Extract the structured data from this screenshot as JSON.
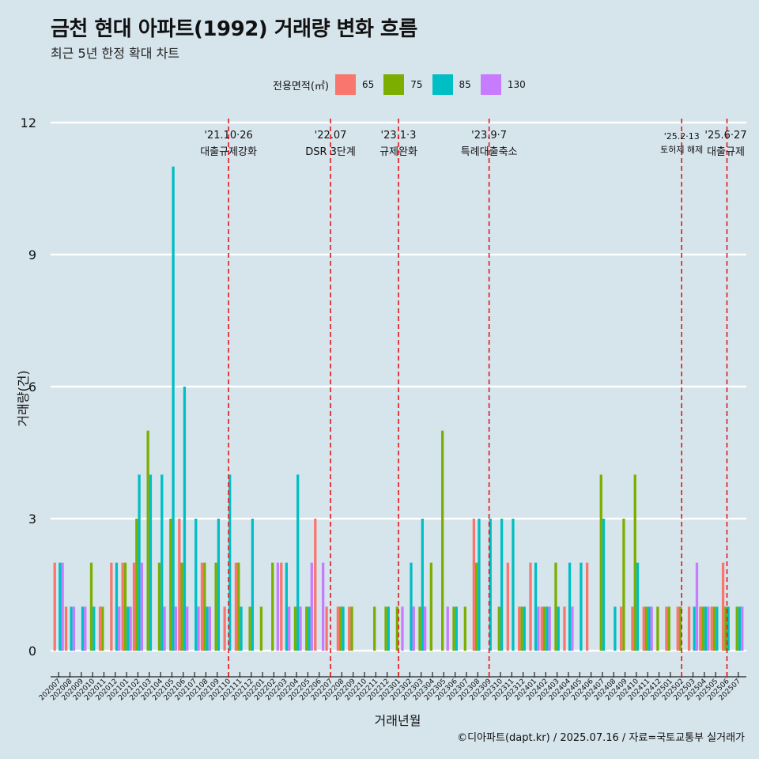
{
  "title": "금천 현대 아파트(1992) 거래량 변화 흐름",
  "subtitle": "최근 5년 한정 확대 차트",
  "caption": "©디아파트(dapt.kr) / 2025.07.16 / 자료=국토교통부 실거래가",
  "legend": {
    "title": "전용면적(㎡)",
    "items": [
      {
        "label": "65",
        "color": "#f8766d"
      },
      {
        "label": "75",
        "color": "#7cae00"
      },
      {
        "label": "85",
        "color": "#00bfc4"
      },
      {
        "label": "130",
        "color": "#c77cff"
      }
    ]
  },
  "chart_data": {
    "type": "bar",
    "title": "금천 현대 아파트(1992) 거래량 변화 흐름",
    "xlabel": "거래년월",
    "ylabel": "거래량(건)",
    "ylim": [
      0,
      12
    ],
    "yticks": [
      0,
      3,
      6,
      9,
      12
    ],
    "categories": [
      "202007",
      "202008",
      "202009",
      "202010",
      "202011",
      "202012",
      "202101",
      "202102",
      "202103",
      "202104",
      "202105",
      "202106",
      "202107",
      "202108",
      "202109",
      "202110",
      "202111",
      "202112",
      "202201",
      "202202",
      "202203",
      "202204",
      "202205",
      "202206",
      "202207",
      "202208",
      "202209",
      "202210",
      "202211",
      "202212",
      "202301",
      "202302",
      "202303",
      "202304",
      "202305",
      "202306",
      "202307",
      "202308",
      "202309",
      "202310",
      "202311",
      "202312",
      "202401",
      "202402",
      "202403",
      "202404",
      "202405",
      "202406",
      "202407",
      "202408",
      "202409",
      "202410",
      "202411",
      "202412",
      "202501",
      "202502",
      "202503",
      "202504",
      "202505",
      "202506",
      "202507"
    ],
    "series": [
      {
        "name": "65",
        "values": [
          2,
          1,
          0,
          0,
          1,
          2,
          2,
          2,
          0,
          0,
          0,
          3,
          0,
          2,
          0,
          1,
          2,
          0,
          0,
          0,
          2,
          0,
          0,
          3,
          1,
          1,
          1,
          0,
          0,
          0,
          0,
          0,
          0,
          0,
          0,
          0,
          0,
          3,
          0,
          0,
          2,
          1,
          2,
          1,
          0,
          1,
          0,
          2,
          0,
          0,
          1,
          1,
          1,
          0,
          1,
          1,
          1,
          1,
          1,
          2,
          0
        ]
      },
      {
        "name": "75",
        "values": [
          0,
          0,
          0,
          2,
          1,
          0,
          2,
          3,
          5,
          2,
          3,
          2,
          0,
          2,
          2,
          0,
          2,
          1,
          1,
          2,
          0,
          1,
          1,
          0,
          0,
          1,
          1,
          0,
          1,
          1,
          1,
          0,
          1,
          2,
          5,
          1,
          1,
          2,
          0,
          1,
          0,
          1,
          0,
          1,
          2,
          0,
          0,
          0,
          4,
          0,
          3,
          4,
          1,
          1,
          1,
          1,
          0,
          1,
          1,
          1,
          1
        ]
      },
      {
        "name": "85",
        "values": [
          2,
          1,
          1,
          1,
          0,
          2,
          1,
          4,
          4,
          4,
          11,
          6,
          3,
          1,
          3,
          4,
          1,
          3,
          0,
          0,
          2,
          4,
          1,
          0,
          0,
          1,
          0,
          0,
          0,
          1,
          0,
          2,
          3,
          0,
          0,
          1,
          0,
          3,
          3,
          3,
          3,
          1,
          2,
          1,
          1,
          2,
          2,
          0,
          3,
          1,
          0,
          2,
          1,
          0,
          0,
          0,
          1,
          1,
          1,
          1,
          1
        ]
      },
      {
        "name": "130",
        "values": [
          2,
          1,
          1,
          0,
          0,
          1,
          1,
          2,
          0,
          1,
          1,
          1,
          1,
          1,
          0,
          0,
          0,
          0,
          0,
          2,
          1,
          1,
          2,
          2,
          0,
          0,
          0,
          0,
          0,
          0,
          1,
          1,
          1,
          0,
          1,
          0,
          0,
          0,
          0,
          0,
          0,
          0,
          1,
          1,
          0,
          1,
          0,
          0,
          0,
          0,
          0,
          0,
          1,
          0,
          0,
          0,
          2,
          1,
          0,
          0,
          1
        ]
      }
    ],
    "annotations": [
      {
        "category": "202110",
        "date": "'21.10·26",
        "label": "대출규제강화"
      },
      {
        "category": "202207",
        "date": "'22.07",
        "label": "DSR 3단계"
      },
      {
        "category": "202301",
        "date": "'23.1·3",
        "label": "규제완화"
      },
      {
        "category": "202309",
        "date": "'23.9·7",
        "label": "특례대출축소"
      },
      {
        "category": "202502",
        "date": "'25.2·13",
        "label": "토허제 해제"
      },
      {
        "category": "202506",
        "date": "'25.6·27",
        "label": "대출규제"
      }
    ],
    "grid": true,
    "legend_position": "top"
  }
}
